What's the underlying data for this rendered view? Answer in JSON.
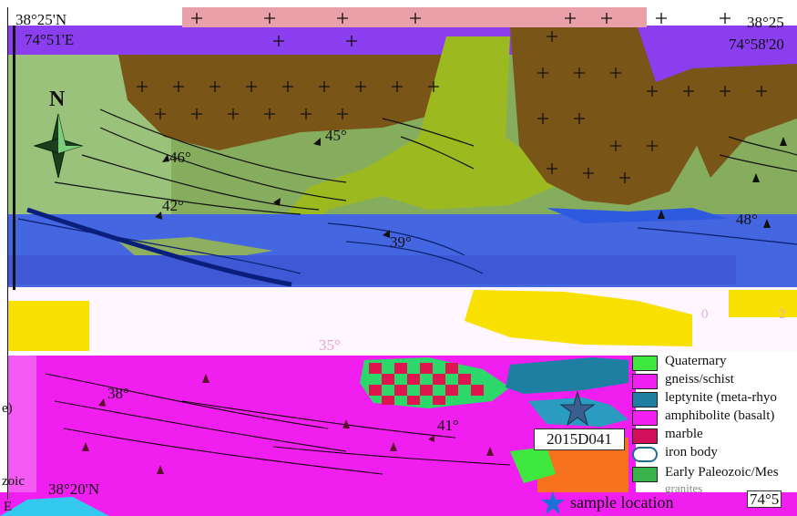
{
  "map": {
    "coords": {
      "tl_lat": "38°25'N",
      "tl_lon": "74°51'E",
      "tr_lat": "38°25",
      "tr_lon": "74°58'20",
      "bl_lat": "38°20'N",
      "br_lon": "74°5"
    },
    "north_label": "N",
    "dips": [
      "46°",
      "45°",
      "42°",
      "39°",
      "48°",
      "38°",
      "41°",
      "35°"
    ],
    "sample_id": "2015D041",
    "edge_fragments": {
      "left_a": "e)",
      "left_b": "zoic",
      "left_c": "E",
      "legend_tail": "granites",
      "scale_a": "0",
      "scale_b": "2"
    }
  },
  "legend": {
    "items": [
      {
        "label": "Quaternary",
        "color": "#3ee83e"
      },
      {
        "label": "gneiss/schist",
        "color": "#f21ff2"
      },
      {
        "label": "leptynite (meta-rhyo",
        "color": "#1f7fa3"
      },
      {
        "label": "amphibolite (basalt)",
        "color": "#f31ff3"
      },
      {
        "label": "marble",
        "color": "#d10f5a"
      },
      {
        "label": "iron body",
        "color": "#1d6d8f"
      },
      {
        "label": "Early Paleozoic/Mes",
        "color": "#3ab34a"
      }
    ],
    "sample_location_label": "sample location"
  }
}
